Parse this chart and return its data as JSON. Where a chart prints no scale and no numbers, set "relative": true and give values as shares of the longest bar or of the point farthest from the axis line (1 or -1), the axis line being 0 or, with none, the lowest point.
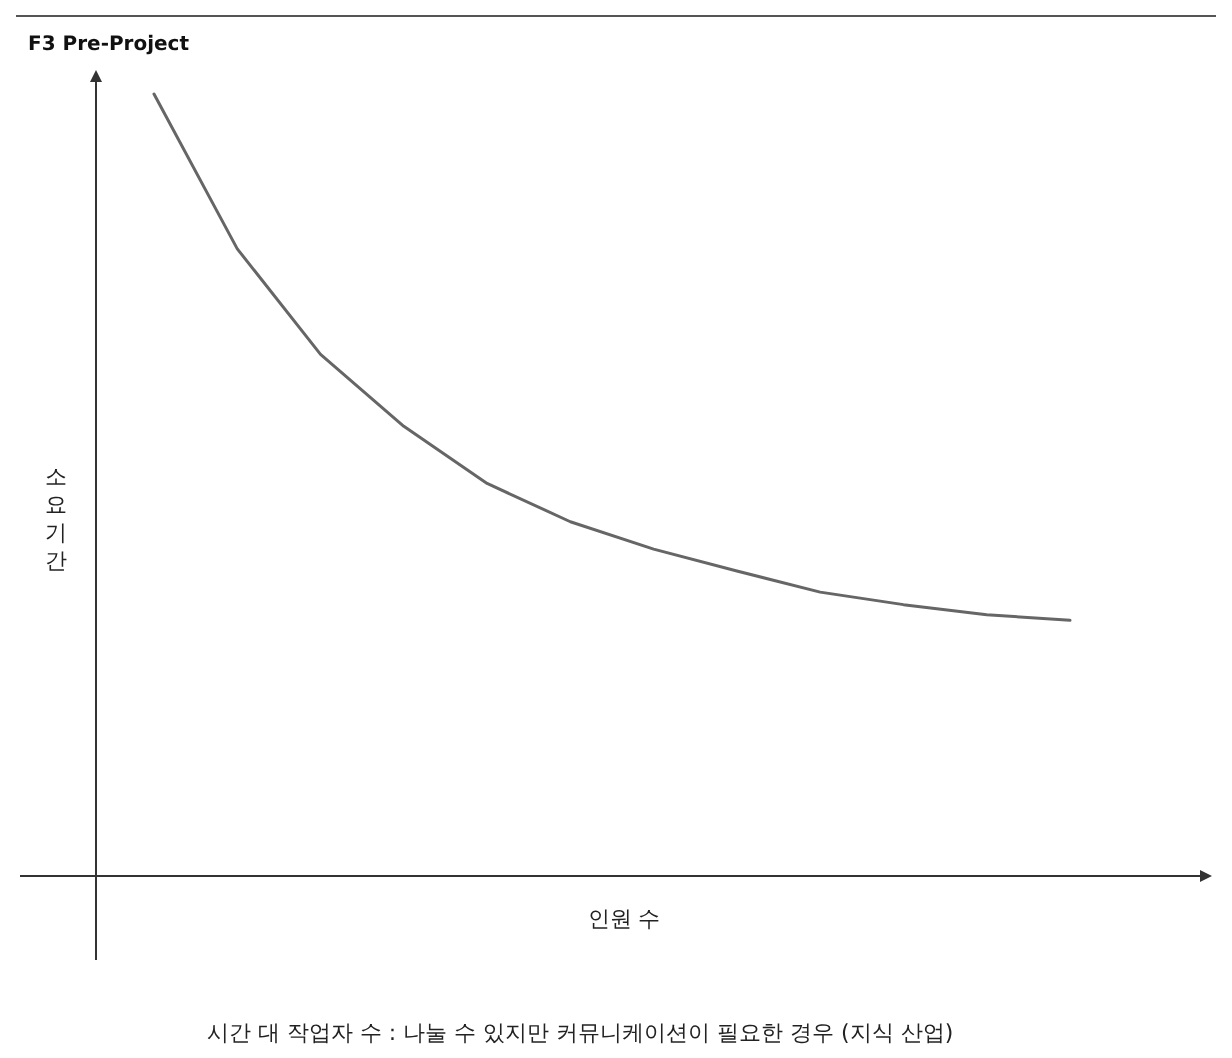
{
  "chart_data": {
    "type": "line",
    "relative": true,
    "title": "F3 Pre-Project",
    "xlabel": "인원 수",
    "ylabel": "소요기간",
    "annotations": [
      "시간 대 작업자 수 : 나눌 수 있지만 커뮤니케이션이 필요한 경우 (지식 산업)"
    ],
    "categories": [
      null,
      null,
      null,
      null,
      null,
      null,
      null,
      null,
      null,
      null,
      null,
      null
    ],
    "series": [
      {
        "color": "#666666",
        "values": [
          1.0,
          0.802,
          0.667,
          0.575,
          0.502,
          0.453,
          0.418,
          0.39,
          0.363,
          0.347,
          0.334,
          0.327
        ]
      }
    ],
    "marker": "none",
    "line_style": "solid"
  }
}
